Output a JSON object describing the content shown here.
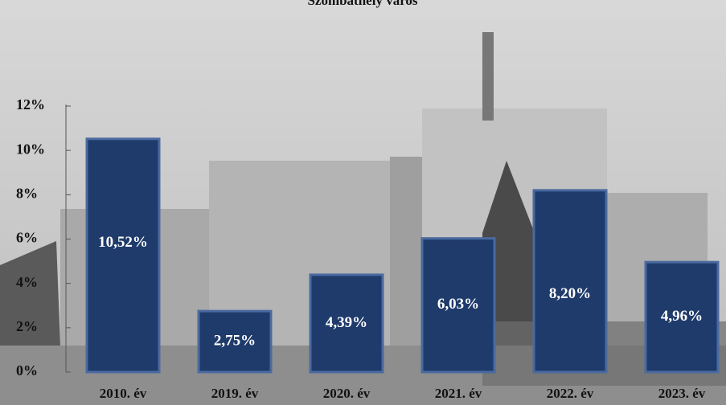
{
  "chart_data": {
    "type": "bar",
    "title": "Szombathely város",
    "categories": [
      "2010. év",
      "2019. év",
      "2020. év",
      "2021. év",
      "2022. év",
      "2023. év"
    ],
    "values": [
      10.52,
      2.75,
      4.39,
      6.03,
      8.2,
      4.96
    ],
    "value_labels": [
      "10,52%",
      "2,75%",
      "4,39%",
      "6,03%",
      "8,20%",
      "4,96%"
    ],
    "color": "#1f3b6b",
    "ylim": [
      0,
      12
    ],
    "yticks": [
      {
        "value": 0,
        "label": "0%"
      },
      {
        "value": 2,
        "label": "2%"
      },
      {
        "value": 4,
        "label": "4%"
      },
      {
        "value": 6,
        "label": "6%"
      },
      {
        "value": 8,
        "label": "8%"
      },
      {
        "value": 10,
        "label": "10%"
      },
      {
        "value": 12,
        "label": "12%"
      }
    ]
  }
}
